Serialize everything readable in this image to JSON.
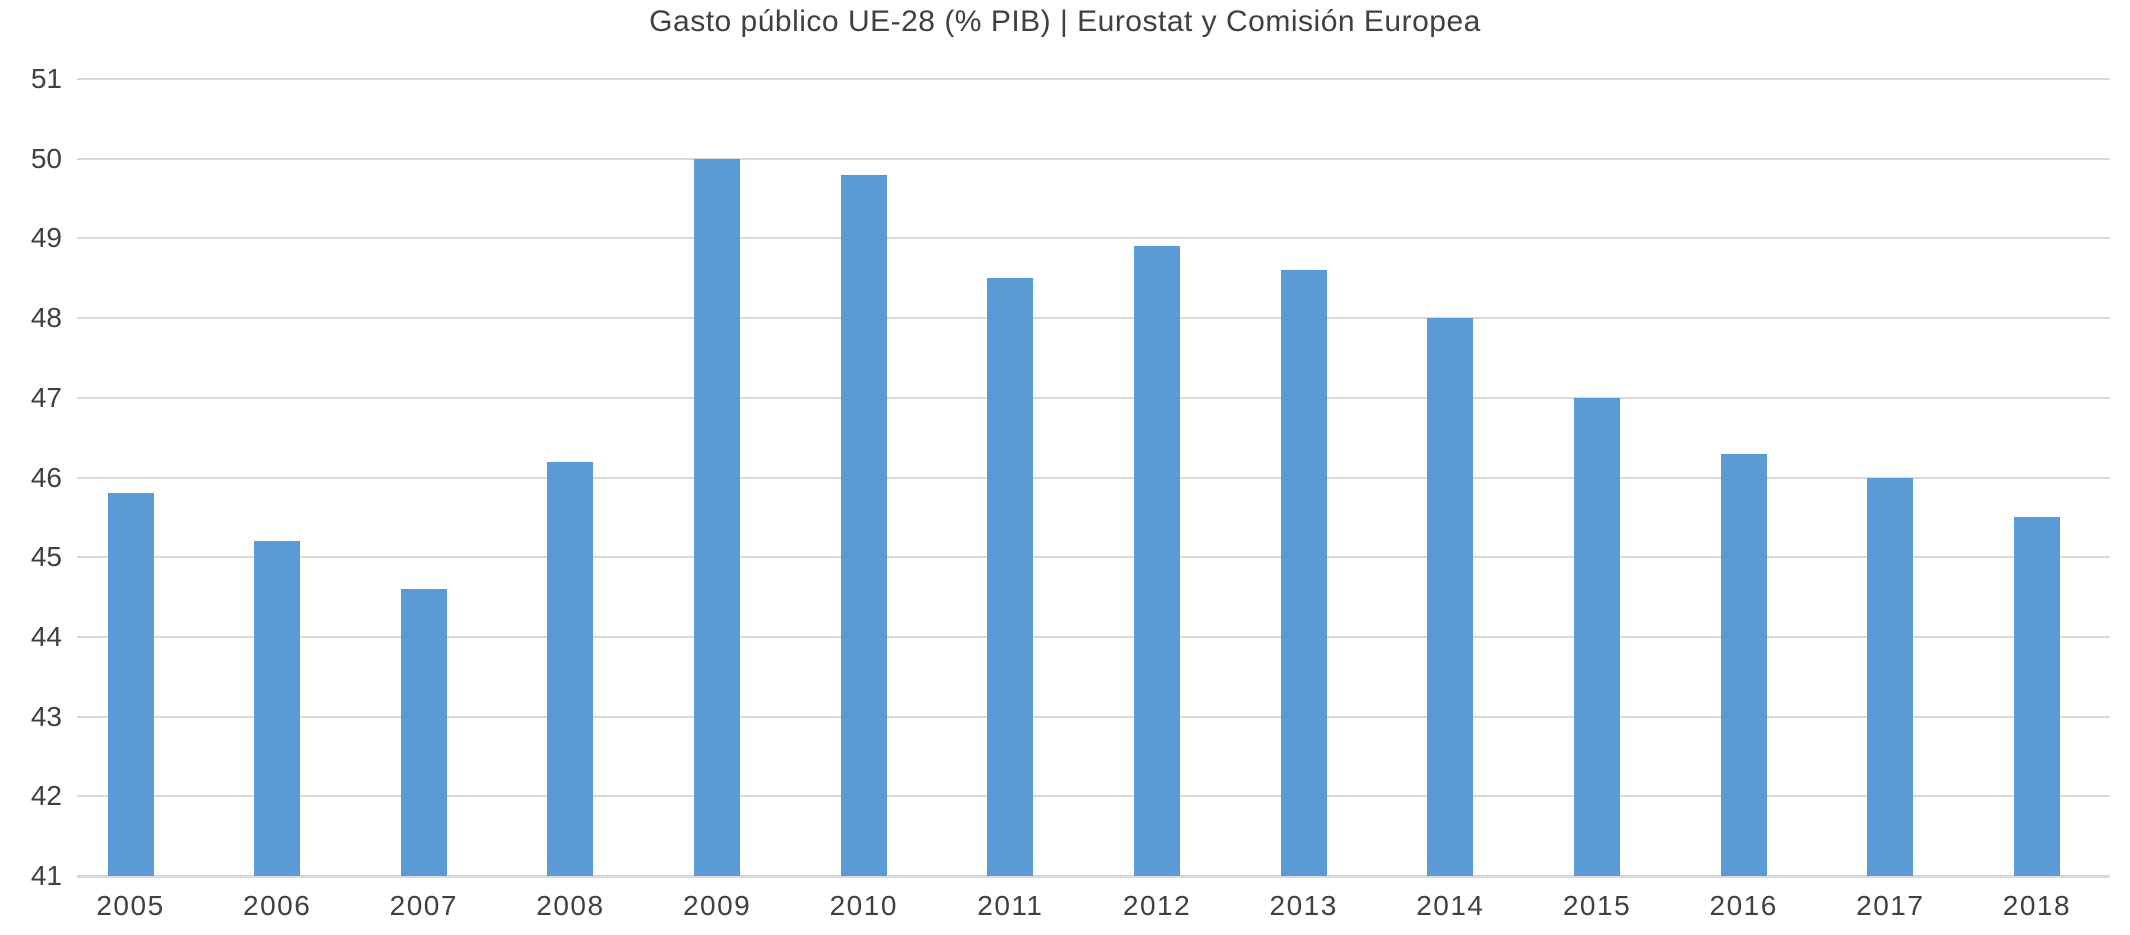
{
  "chart_data": {
    "type": "bar",
    "title": "Gasto público UE-28 (% PIB) | Eurostat y Comisión Europea",
    "categories": [
      "2005",
      "2006",
      "2007",
      "2008",
      "2009",
      "2010",
      "2011",
      "2012",
      "2013",
      "2014",
      "2015",
      "2016",
      "2017",
      "2018"
    ],
    "values": [
      45.8,
      45.2,
      44.6,
      46.2,
      50.0,
      49.8,
      48.5,
      48.9,
      48.6,
      48.0,
      47.0,
      46.3,
      46.0,
      45.5
    ],
    "xlabel": "",
    "ylabel": "",
    "ylim": [
      41,
      51
    ],
    "yticks": [
      41,
      42,
      43,
      44,
      45,
      46,
      47,
      48,
      49,
      50,
      51
    ],
    "grid": true,
    "legend": false,
    "colors": {
      "bar": "#5B9BD5",
      "gridline": "#D9D9D9",
      "text": "#404040",
      "background": "#FFFFFF"
    }
  }
}
